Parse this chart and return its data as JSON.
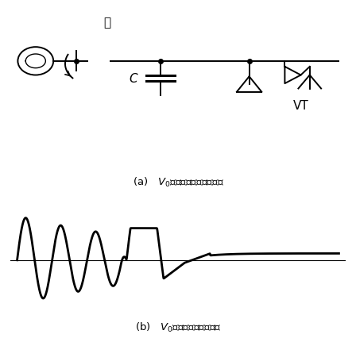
{
  "caption_a": "(a)   $V_0$発生時の電力系統状況",
  "caption_b": "(b)   $V_0$発生時の電圧波形例",
  "bg_color": "#ffffff",
  "line_color": "#000000",
  "fig_width": 4.48,
  "fig_height": 4.27,
  "dpi": 100
}
